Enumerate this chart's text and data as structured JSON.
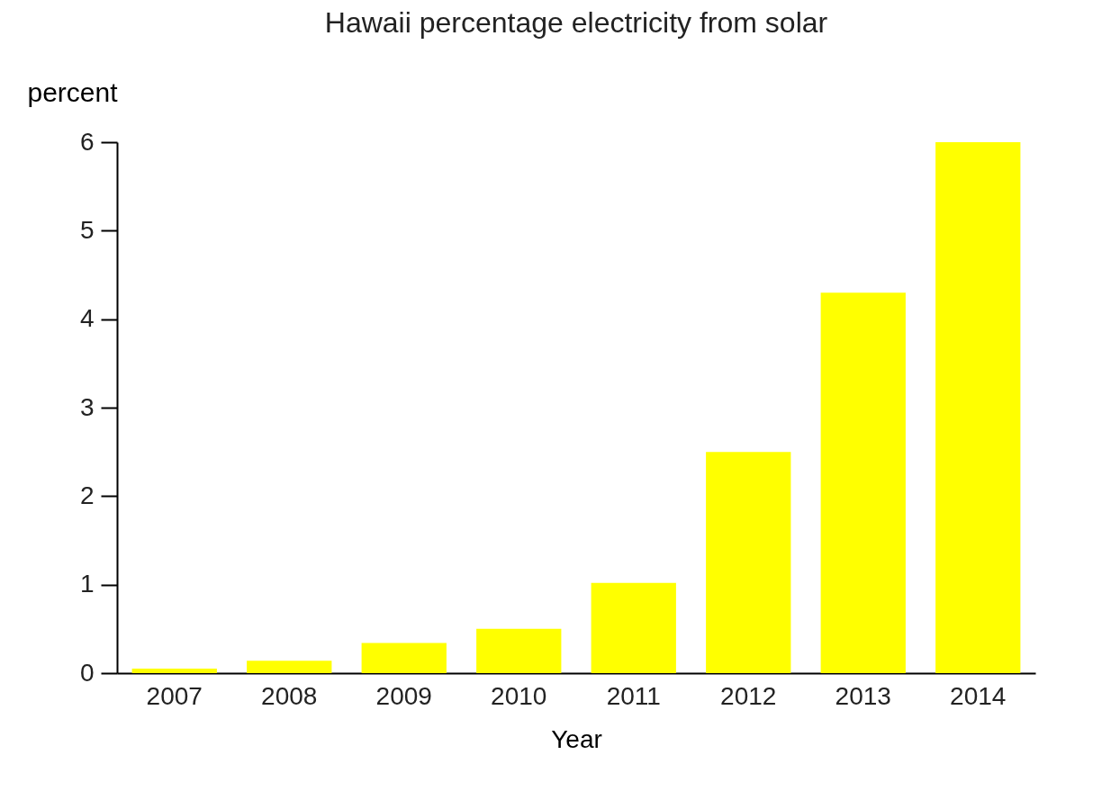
{
  "chart_data": {
    "type": "bar",
    "title": "Hawaii percentage electricity from solar",
    "xlabel": "Year",
    "ylabel": "percent",
    "categories": [
      "2007",
      "2008",
      "2009",
      "2010",
      "2011",
      "2012",
      "2013",
      "2014"
    ],
    "values": [
      0.05,
      0.14,
      0.34,
      0.5,
      1.02,
      2.5,
      4.3,
      6.0
    ],
    "color": "#ffff00",
    "ylim": [
      0,
      6
    ],
    "yticks": [
      0,
      1,
      2,
      3,
      4,
      5,
      6
    ],
    "grid": false
  }
}
